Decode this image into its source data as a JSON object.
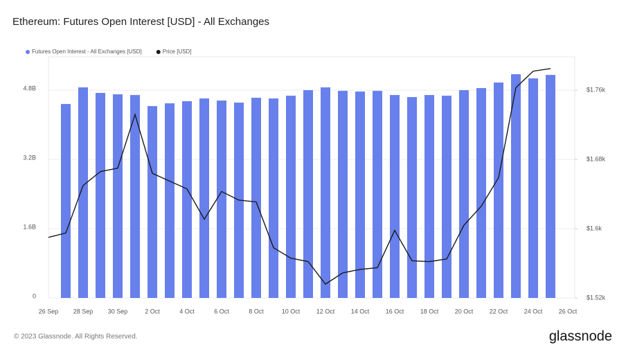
{
  "chart_data": {
    "type": "bar-line",
    "title": "Ethereum: Futures Open Interest [USD] - All Exchanges",
    "categories": [
      "26 Sep",
      null,
      "28 Sep",
      null,
      "30 Sep",
      null,
      "2 Oct",
      null,
      "4 Oct",
      null,
      "6 Oct",
      null,
      "8 Oct",
      null,
      "10 Oct",
      null,
      "12 Oct",
      null,
      "14 Oct",
      null,
      "16 Oct",
      null,
      "18 Oct",
      null,
      "20 Oct",
      null,
      "22 Oct",
      null,
      "24 Oct",
      null,
      "26 Oct"
    ],
    "series": [
      {
        "name": "Futures Open Interest - All Exchanges [USD]",
        "type": "bar",
        "color": "#6880eb",
        "values": [
          null,
          4.48,
          4.864,
          4.736,
          4.704,
          4.688,
          4.432,
          4.496,
          4.544,
          4.608,
          4.56,
          4.512,
          4.624,
          4.608,
          4.672,
          4.8,
          4.864,
          4.784,
          4.768,
          4.784,
          4.688,
          4.64,
          4.688,
          4.672,
          4.8,
          4.848,
          4.976,
          5.168,
          5.072,
          5.152,
          null
        ]
      },
      {
        "name": "Price [USD]",
        "type": "line",
        "color": "#1a1a1a",
        "axis": "y2",
        "values": [
          1590,
          1595,
          1650,
          1666,
          1670,
          1732,
          1664,
          1655,
          1646,
          1611,
          1643,
          1633,
          1631,
          1578,
          1566,
          1562,
          1536,
          1549,
          1553,
          1555,
          1598,
          1563,
          1562,
          1565,
          1604,
          1626,
          1659,
          1763,
          1782,
          1785,
          null
        ]
      }
    ],
    "ylim": [
      0,
      5.57
    ],
    "yticks": [
      0,
      {
        "value": 1.6,
        "label": "1.6B"
      },
      {
        "value": 3.2,
        "label": "3.2B"
      },
      {
        "value": 4.8,
        "label": "4.8B"
      }
    ],
    "y2lim": [
      1520,
      1798.6
    ],
    "y2ticks": [
      {
        "value": 1520,
        "label": "$1.52k"
      },
      {
        "value": 1600,
        "label": "$1.6k"
      },
      {
        "value": 1680,
        "label": "$1.68k"
      },
      {
        "value": 1760,
        "label": "$1.76k"
      }
    ],
    "grid": true,
    "legend": "top-left"
  },
  "footer": "© 2023 Glassnode. All Rights Reserved.",
  "logo": "glassnode"
}
